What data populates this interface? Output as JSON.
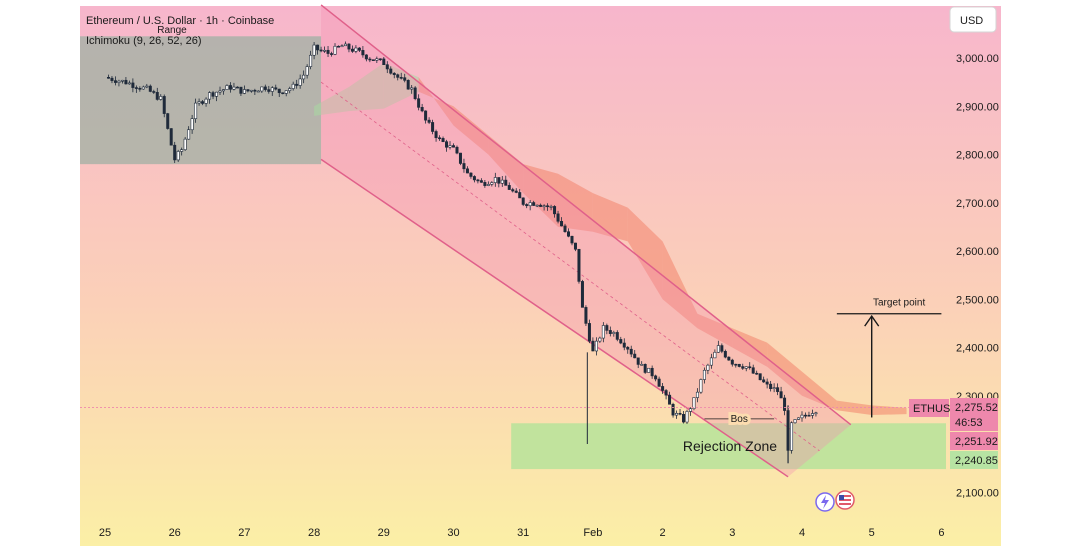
{
  "header": {
    "title": "Ethereum / U.S. Dollar · 1h · Coinbase",
    "indicator": "Ichimoku (9, 26, 52, 26)",
    "currency": "USD"
  },
  "colors": {
    "bg_top": "#f7b6cc",
    "bg_bottom": "#fbefa6",
    "channel_fill": "#f48fb1",
    "channel_line": "#e0608a",
    "range_fill": "#9fb0a3",
    "rejection_fill": "#b6e39a",
    "cloud_bear": "#f2836b",
    "cloud_bull": "#a7d9a2",
    "candle": "#1f2a3a",
    "price_label_bg": "#ee88ac",
    "support_label_bg": "#b7e3a3"
  },
  "chart_data": {
    "type": "candlestick",
    "title": "Ethereum / U.S. Dollar · 1h · Coinbase",
    "x_ticks": [
      "25",
      "26",
      "27",
      "28",
      "29",
      "30",
      "31",
      "Feb",
      "2",
      "3",
      "4",
      "5",
      "6"
    ],
    "y_ticks": [
      "3,000.00",
      "2,900.00",
      "2,800.00",
      "2,700.00",
      "2,600.00",
      "2,500.00",
      "2,400.00",
      "2,300.00",
      "2,100.00"
    ],
    "y_tick_values": [
      3000,
      2900,
      2800,
      2700,
      2600,
      2500,
      2400,
      2300,
      2100
    ],
    "ylim": [
      2080,
      3100
    ],
    "price_path": [
      [
        0.0,
        2960
      ],
      [
        0.3,
        2950
      ],
      [
        0.6,
        2935
      ],
      [
        0.8,
        2915
      ],
      [
        0.95,
        2820
      ],
      [
        1.0,
        2790
      ],
      [
        1.1,
        2810
      ],
      [
        1.3,
        2900
      ],
      [
        1.5,
        2925
      ],
      [
        1.8,
        2940
      ],
      [
        2.0,
        2930
      ],
      [
        2.3,
        2940
      ],
      [
        2.5,
        2930
      ],
      [
        2.7,
        2940
      ],
      [
        2.85,
        2965
      ],
      [
        3.0,
        3020
      ],
      [
        3.2,
        3010
      ],
      [
        3.4,
        3025
      ],
      [
        3.6,
        3015
      ],
      [
        3.8,
        3000
      ],
      [
        4.0,
        2990
      ],
      [
        4.2,
        2960
      ],
      [
        4.4,
        2935
      ],
      [
        4.6,
        2870
      ],
      [
        4.8,
        2830
      ],
      [
        5.0,
        2810
      ],
      [
        5.2,
        2760
      ],
      [
        5.4,
        2740
      ],
      [
        5.6,
        2750
      ],
      [
        5.8,
        2730
      ],
      [
        6.0,
        2700
      ],
      [
        6.2,
        2700
      ],
      [
        6.4,
        2690
      ],
      [
        6.6,
        2640
      ],
      [
        6.75,
        2600
      ],
      [
        6.85,
        2480
      ],
      [
        7.0,
        2390
      ],
      [
        7.15,
        2440
      ],
      [
        7.3,
        2430
      ],
      [
        7.5,
        2400
      ],
      [
        7.7,
        2360
      ],
      [
        7.9,
        2340
      ],
      [
        8.0,
        2310
      ],
      [
        8.15,
        2265
      ],
      [
        8.3,
        2250
      ],
      [
        8.45,
        2290
      ],
      [
        8.6,
        2350
      ],
      [
        8.8,
        2400
      ],
      [
        9.0,
        2370
      ],
      [
        9.2,
        2360
      ],
      [
        9.35,
        2340
      ],
      [
        9.5,
        2320
      ],
      [
        9.65,
        2310
      ],
      [
        9.75,
        2275
      ],
      [
        9.8,
        2180
      ],
      [
        9.85,
        2240
      ],
      [
        9.95,
        2250
      ],
      [
        10.1,
        2265
      ],
      [
        10.25,
        2275
      ]
    ],
    "instrument": "ETHUSD",
    "last_price": "2,275.52",
    "countdown": "46:53",
    "price_levels": [
      "2,251.92",
      "2,240.85"
    ],
    "zones": {
      "range_label": "Range",
      "rejection_label": "Rejection Zone"
    },
    "annotations": {
      "bos_label": "Bos",
      "target_label": "Target point"
    },
    "target_price": 2475,
    "range_zone": {
      "x0": 0.0,
      "x1": 3.1,
      "ytop": 3045,
      "ybot": 2780
    },
    "rejection_zone": {
      "x0": 6.0,
      "x1": 12.1,
      "ytop": 2243,
      "ybot": 2148
    },
    "channel": {
      "upper_start": [
        3.1,
        3110
      ],
      "upper_end": [
        10.7,
        2240
      ],
      "lower_start": [
        3.1,
        2790
      ],
      "lower_end": [
        9.8,
        2132
      ]
    },
    "bos_level": 2252,
    "bos_range": [
      8.6,
      9.6
    ],
    "target_arrow": {
      "x": 11.0,
      "from": 2255,
      "to": 2465
    },
    "target_line": {
      "x0": 10.5,
      "x1": 12.0,
      "y": 2470
    },
    "cloud": [
      [
        3.0,
        2880,
        2900
      ],
      [
        3.5,
        2890,
        2940
      ],
      [
        4.0,
        2895,
        2990
      ],
      [
        4.5,
        2930,
        2960
      ],
      [
        5.0,
        2900,
        2860
      ],
      [
        5.5,
        2840,
        2800
      ],
      [
        6.0,
        2780,
        2720
      ],
      [
        6.5,
        2760,
        2650
      ],
      [
        7.0,
        2720,
        2640
      ],
      [
        7.5,
        2690,
        2620
      ],
      [
        8.0,
        2620,
        2500
      ],
      [
        8.5,
        2470,
        2440
      ],
      [
        9.0,
        2440,
        2400
      ],
      [
        9.5,
        2410,
        2360
      ],
      [
        10.0,
        2350,
        2300
      ],
      [
        10.5,
        2290,
        2270
      ],
      [
        11.0,
        2280,
        2260
      ],
      [
        11.5,
        2275,
        2262
      ]
    ]
  }
}
